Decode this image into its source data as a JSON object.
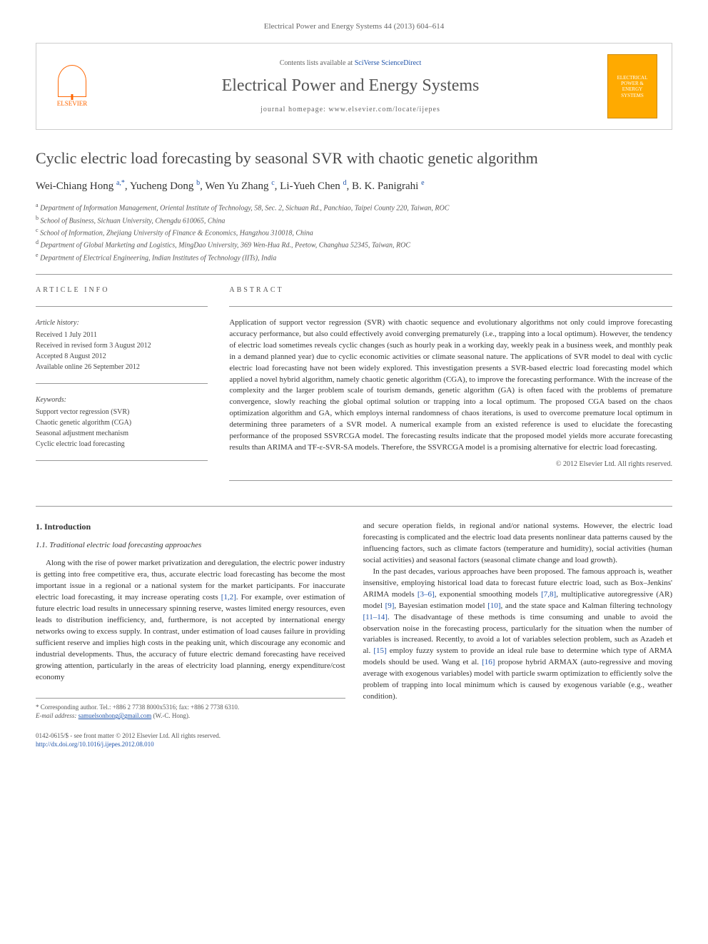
{
  "citation": "Electrical Power and Energy Systems 44 (2013) 604–614",
  "header": {
    "publisher": "ELSEVIER",
    "contents_prefix": "Contents lists available at ",
    "contents_link": "SciVerse ScienceDirect",
    "journal_name": "Electrical Power and Energy Systems",
    "homepage_prefix": "journal homepage: ",
    "homepage_url": "www.elsevier.com/locate/ijepes",
    "cover_text": "ELECTRICAL POWER & ENERGY SYSTEMS"
  },
  "title": "Cyclic electric load forecasting by seasonal SVR with chaotic genetic algorithm",
  "authors_html": "Wei-Chiang Hong <sup>a,*</sup>, Yucheng Dong <sup>b</sup>, Wen Yu Zhang <sup>c</sup>, Li-Yueh Chen <sup>d</sup>, B. K. Panigrahi <sup>e</sup>",
  "affiliations": [
    {
      "sup": "a",
      "text": "Department of Information Management, Oriental Institute of Technology, 58, Sec. 2, Sichuan Rd., Panchiao, Taipei County 220, Taiwan, ROC"
    },
    {
      "sup": "b",
      "text": "School of Business, Sichuan University, Chengdu 610065, China"
    },
    {
      "sup": "c",
      "text": "School of Information, Zhejiang University of Finance & Economics, Hangzhou 310018, China"
    },
    {
      "sup": "d",
      "text": "Department of Global Marketing and Logistics, MingDao University, 369 Wen-Hua Rd., Peetow, Changhua 52345, Taiwan, ROC"
    },
    {
      "sup": "e",
      "text": "Department of Electrical Engineering, Indian Institutes of Technology (IITs), India"
    }
  ],
  "info": {
    "heading": "ARTICLE INFO",
    "history_heading": "Article history:",
    "history": [
      "Received 1 July 2011",
      "Received in revised form 3 August 2012",
      "Accepted 8 August 2012",
      "Available online 26 September 2012"
    ],
    "keywords_heading": "Keywords:",
    "keywords": [
      "Support vector regression (SVR)",
      "Chaotic genetic algorithm (CGA)",
      "Seasonal adjustment mechanism",
      "Cyclic electric load forecasting"
    ]
  },
  "abstract": {
    "heading": "ABSTRACT",
    "text": "Application of support vector regression (SVR) with chaotic sequence and evolutionary algorithms not only could improve forecasting accuracy performance, but also could effectively avoid converging prematurely (i.e., trapping into a local optimum). However, the tendency of electric load sometimes reveals cyclic changes (such as hourly peak in a working day, weekly peak in a business week, and monthly peak in a demand planned year) due to cyclic economic activities or climate seasonal nature. The applications of SVR model to deal with cyclic electric load forecasting have not been widely explored. This investigation presents a SVR-based electric load forecasting model which applied a novel hybrid algorithm, namely chaotic genetic algorithm (CGA), to improve the forecasting performance. With the increase of the complexity and the larger problem scale of tourism demands, genetic algorithm (GA) is often faced with the problems of premature convergence, slowly reaching the global optimal solution or trapping into a local optimum. The proposed CGA based on the chaos optimization algorithm and GA, which employs internal randomness of chaos iterations, is used to overcome premature local optimum in determining three parameters of a SVR model. A numerical example from an existed reference is used to elucidate the forecasting performance of the proposed SSVRCGA model. The forecasting results indicate that the proposed model yields more accurate forecasting results than ARIMA and TF-ε-SVR-SA models. Therefore, the SSVRCGA model is a promising alternative for electric load forecasting.",
    "copyright": "© 2012 Elsevier Ltd. All rights reserved."
  },
  "body": {
    "section1": "1. Introduction",
    "subsection11": "1.1. Traditional electric load forecasting approaches",
    "col1_para1": "Along with the rise of power market privatization and deregulation, the electric power industry is getting into free competitive era, thus, accurate electric load forecasting has become the most important issue in a regional or a national system for the market participants. For inaccurate electric load forecasting, it may increase operating costs <a href='#'>[1,2]</a>. For example, over estimation of future electric load results in unnecessary spinning reserve, wastes limited energy resources, even leads to distribution inefficiency, and, furthermore, is not accepted by international energy networks owing to excess supply. In contrast, under estimation of load causes failure in providing sufficient reserve and implies high costs in the peaking unit, which discourage any economic and industrial developments. Thus, the accuracy of future electric demand forecasting have received growing attention, particularly in the areas of electricity load planning, energy expenditure/cost economy",
    "col2_para1": "and secure operation fields, in regional and/or national systems. However, the electric load forecasting is complicated and the electric load data presents nonlinear data patterns caused by the influencing factors, such as climate factors (temperature and humidity), social activities (human social activities) and seasonal factors (seasonal climate change and load growth).",
    "col2_para2": "In the past decades, various approaches have been proposed. The famous approach is, weather insensitive, employing historical load data to forecast future electric load, such as Box–Jenkins' ARIMA models <a href='#'>[3–6]</a>, exponential smoothing models <a href='#'>[7,8]</a>, multiplicative autoregressive (AR) model <a href='#'>[9]</a>, Bayesian estimation model <a href='#'>[10]</a>, and the state space and Kalman filtering technology <a href='#'>[11–14]</a>. The disadvantage of these methods is time consuming and unable to avoid the observation noise in the forecasting process, particularly for the situation when the number of variables is increased. Recently, to avoid a lot of variables selection problem, such as Azadeh et al. <a href='#'>[15]</a> employ fuzzy system to provide an ideal rule base to determine which type of ARMA models should be used. Wang et al. <a href='#'>[16]</a> propose hybrid ARMAX (auto-regressive and moving average with exogenous variables) model with particle swarm optimization to efficiently solve the problem of trapping into local minimum which is caused by exogenous variable (e.g., weather condition)."
  },
  "corresponding": {
    "label": "* Corresponding author. Tel.: +886 2 7738 8000x5316; fax: +886 2 7738 6310.",
    "email_label": "E-mail address:",
    "email": "samuelsonhong@gmail.com",
    "email_suffix": "(W.-C. Hong)."
  },
  "footer": {
    "line1": "0142-0615/$ - see front matter © 2012 Elsevier Ltd. All rights reserved.",
    "doi": "http://dx.doi.org/10.1016/j.ijepes.2012.08.010"
  },
  "colors": {
    "link": "#2255aa",
    "text": "#333333",
    "muted": "#666666",
    "orange": "#ff6600",
    "cover_bg": "#ffaa00"
  }
}
